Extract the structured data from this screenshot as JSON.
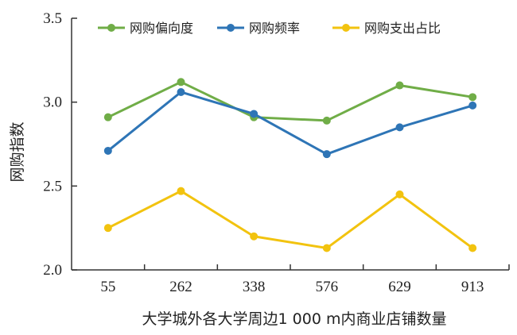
{
  "chart_data": {
    "type": "line",
    "categories": [
      "55",
      "262",
      "338",
      "576",
      "629",
      "913"
    ],
    "series": [
      {
        "name": "网购偏向度",
        "color": "#70ad47",
        "values": [
          2.91,
          3.12,
          2.91,
          2.89,
          3.1,
          3.03
        ]
      },
      {
        "name": "网购频率",
        "color": "#2e75b6",
        "values": [
          2.71,
          3.06,
          2.93,
          2.69,
          2.85,
          2.98
        ]
      },
      {
        "name": "网购支出占比",
        "color": "#f2c30f",
        "values": [
          2.25,
          2.47,
          2.2,
          2.13,
          2.45,
          2.13
        ]
      }
    ],
    "ylim": [
      2.0,
      3.5
    ],
    "yticks": [
      "2.0",
      "2.5",
      "3.0",
      "3.5"
    ],
    "xlabel": "大学城外各大学周边1 000 m内商业店铺数量",
    "ylabel": "网购指数",
    "legend_position": "top",
    "grid": false
  }
}
